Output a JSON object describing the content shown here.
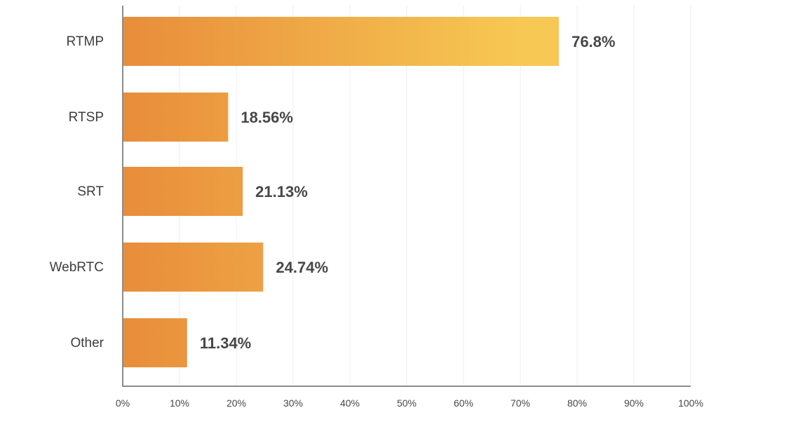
{
  "chart_data": {
    "type": "bar",
    "orientation": "horizontal",
    "categories": [
      "RTMP",
      "RTSP",
      "SRT",
      "WebRTC",
      "Other"
    ],
    "values": [
      76.8,
      18.56,
      21.13,
      24.74,
      11.34
    ],
    "value_labels": [
      "76.8%",
      "18.56%",
      "21.13%",
      "24.74%",
      "11.34%"
    ],
    "x_ticks": [
      "0%",
      "10%",
      "20%",
      "30%",
      "40%",
      "50%",
      "60%",
      "70%",
      "80%",
      "90%",
      "100%"
    ],
    "xlim": [
      0,
      100
    ],
    "title": "",
    "xlabel": "",
    "ylabel": "",
    "grid": "vertical",
    "legend": "none",
    "colors": {
      "bar_start": "#E88D3B",
      "bar_end": "#F7C853",
      "value_text": "#474747",
      "category_text": "#3d3d3d",
      "axis": "#8c8c8c",
      "grid": "#ececec"
    }
  }
}
